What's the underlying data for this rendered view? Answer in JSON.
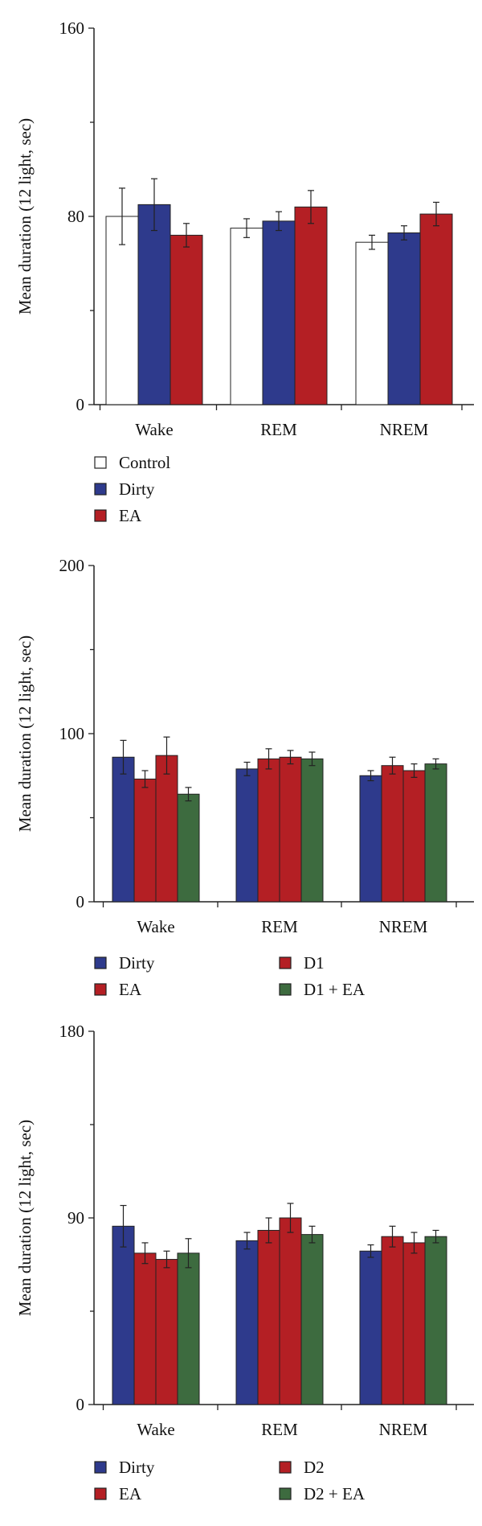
{
  "colors": {
    "Control": "#ffffff",
    "Dirty": "#2e3a8c",
    "EA": "#b41f24",
    "D1": "#b41f24",
    "D1 + EA": "#3d6b3f",
    "D2": "#b41f24",
    "D2 + EA": "#3d6b3f",
    "axis": "#222222"
  },
  "chart_data": [
    {
      "type": "bar",
      "title": "",
      "xlabel": "",
      "ylabel": "Mean duration (12 light, sec)",
      "ylim": [
        0,
        160
      ],
      "yticks": [
        0,
        80,
        160
      ],
      "grid": false,
      "legend_position": "bottom-left",
      "categories": [
        "Wake",
        "REM",
        "NREM"
      ],
      "series": [
        {
          "name": "Control",
          "color_key": "Control",
          "values": [
            80,
            75,
            69
          ],
          "errors": [
            12,
            4,
            3
          ]
        },
        {
          "name": "Dirty",
          "color_key": "EA_blue",
          "values": [
            85,
            78,
            73
          ],
          "errors": [
            11,
            4,
            3
          ]
        },
        {
          "name": "EA",
          "color_key": "EA",
          "values": [
            72,
            84,
            81
          ],
          "errors": [
            5,
            7,
            5
          ]
        }
      ]
    },
    {
      "type": "bar",
      "title": "",
      "xlabel": "",
      "ylabel": "Mean duration (12 light, sec)",
      "ylim": [
        0,
        200
      ],
      "yticks": [
        0,
        100,
        200
      ],
      "grid": false,
      "legend_position": "bottom-left",
      "categories": [
        "Wake",
        "REM",
        "NREM"
      ],
      "series": [
        {
          "name": "Dirty",
          "values": [
            86,
            79,
            75
          ],
          "errors": [
            10,
            4,
            3
          ]
        },
        {
          "name": "EA",
          "values": [
            73,
            85,
            81
          ],
          "errors": [
            5,
            6,
            5
          ]
        },
        {
          "name": "D1",
          "values": [
            87,
            86,
            78
          ],
          "errors": [
            11,
            4,
            4
          ]
        },
        {
          "name": "D1 + EA",
          "values": [
            64,
            85,
            82
          ],
          "errors": [
            4,
            4,
            3
          ]
        }
      ]
    },
    {
      "type": "bar",
      "title": "",
      "xlabel": "",
      "ylabel": "Mean duration (12 light, sec)",
      "ylim": [
        0,
        180
      ],
      "yticks": [
        0,
        90,
        180
      ],
      "grid": false,
      "legend_position": "bottom-left",
      "categories": [
        "Wake",
        "REM",
        "NREM"
      ],
      "series": [
        {
          "name": "Dirty",
          "values": [
            86,
            79,
            74
          ],
          "errors": [
            10,
            4,
            3
          ]
        },
        {
          "name": "EA",
          "values": [
            73,
            84,
            81
          ],
          "errors": [
            5,
            6,
            5
          ]
        },
        {
          "name": "D2",
          "values": [
            70,
            90,
            78
          ],
          "errors": [
            4,
            7,
            5
          ]
        },
        {
          "name": "D2 + EA",
          "values": [
            73,
            82,
            81
          ],
          "errors": [
            7,
            4,
            3
          ]
        }
      ]
    }
  ]
}
